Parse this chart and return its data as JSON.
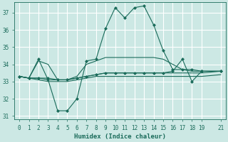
{
  "xlabel": "Humidex (Indice chaleur)",
  "ylabel": "",
  "xlim": [
    -0.5,
    21.5
  ],
  "ylim": [
    30.8,
    37.6
  ],
  "yticks": [
    31,
    32,
    33,
    34,
    35,
    36,
    37
  ],
  "xticks": [
    0,
    1,
    2,
    3,
    4,
    5,
    6,
    7,
    8,
    9,
    10,
    11,
    12,
    13,
    14,
    15,
    16,
    17,
    18,
    19,
    21
  ],
  "background_color": "#cce8e4",
  "grid_color": "#ffffff",
  "line_color": "#1a6b5a",
  "lines": [
    {
      "x": [
        0,
        1,
        2,
        3,
        4,
        5,
        6,
        7,
        8,
        9,
        10,
        11,
        12,
        13,
        14,
        15,
        16,
        17,
        18,
        19,
        21
      ],
      "y": [
        33.3,
        33.2,
        34.3,
        33.1,
        31.3,
        31.3,
        32.0,
        34.2,
        34.3,
        36.1,
        37.3,
        36.7,
        37.3,
        37.4,
        36.3,
        34.8,
        33.7,
        33.7,
        33.7,
        33.6,
        33.6
      ],
      "marker": "D",
      "markersize": 2.0
    },
    {
      "x": [
        0,
        1,
        2,
        3,
        4,
        5,
        6,
        7,
        8,
        9,
        10,
        11,
        12,
        13,
        14,
        15,
        16,
        17,
        18,
        19,
        21
      ],
      "y": [
        33.3,
        33.2,
        33.2,
        33.1,
        33.1,
        33.1,
        33.2,
        33.3,
        33.4,
        33.5,
        33.5,
        33.5,
        33.5,
        33.5,
        33.5,
        33.5,
        33.5,
        33.5,
        33.5,
        33.5,
        33.6
      ],
      "marker": null,
      "markersize": 0
    },
    {
      "x": [
        0,
        1,
        2,
        3,
        4,
        5,
        6,
        7,
        8,
        9,
        10,
        11,
        12,
        13,
        14,
        15,
        16,
        17,
        18,
        19,
        21
      ],
      "y": [
        33.3,
        33.2,
        34.2,
        34.0,
        33.1,
        33.1,
        33.3,
        34.0,
        34.2,
        34.4,
        34.4,
        34.4,
        34.4,
        34.4,
        34.4,
        34.3,
        34.0,
        33.7,
        33.6,
        33.6,
        33.6
      ],
      "marker": null,
      "markersize": 0
    },
    {
      "x": [
        0,
        1,
        2,
        3,
        4,
        5,
        6,
        7,
        8,
        9,
        10,
        11,
        12,
        13,
        14,
        15,
        16,
        17,
        18,
        19,
        21
      ],
      "y": [
        33.3,
        33.2,
        33.2,
        33.2,
        33.1,
        33.1,
        33.2,
        33.3,
        33.4,
        33.5,
        33.5,
        33.5,
        33.5,
        33.5,
        33.5,
        33.5,
        33.6,
        34.3,
        33.0,
        33.6,
        33.6
      ],
      "marker": "D",
      "markersize": 2.0
    },
    {
      "x": [
        0,
        1,
        2,
        3,
        4,
        5,
        6,
        7,
        8,
        9,
        10,
        11,
        12,
        13,
        14,
        15,
        16,
        17,
        18,
        19,
        21
      ],
      "y": [
        33.3,
        33.2,
        33.1,
        33.0,
        33.0,
        33.0,
        33.1,
        33.2,
        33.3,
        33.3,
        33.3,
        33.3,
        33.3,
        33.3,
        33.3,
        33.3,
        33.3,
        33.3,
        33.3,
        33.3,
        33.4
      ],
      "marker": null,
      "markersize": 0
    }
  ]
}
